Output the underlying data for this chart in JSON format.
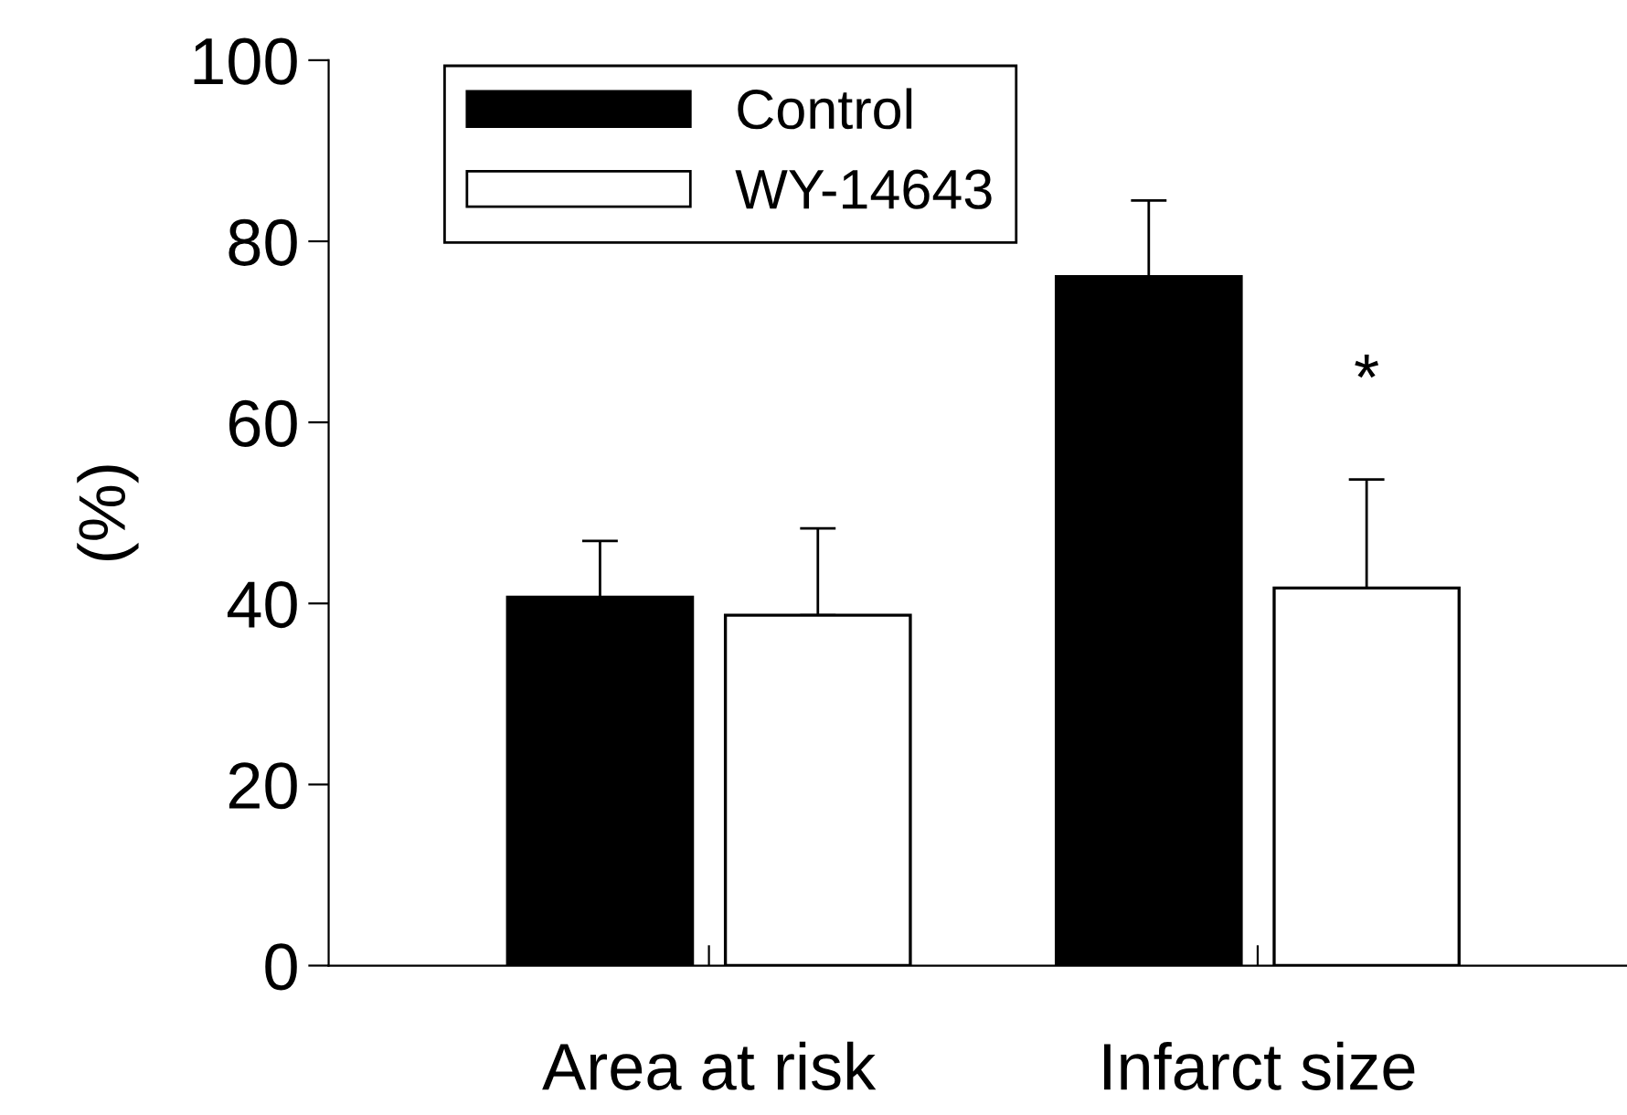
{
  "chart_data": {
    "type": "bar",
    "ylabel": "(%)",
    "categories": [
      "Area at risk",
      "Infarct size"
    ],
    "series": [
      {
        "name": "Control",
        "color": "#000000",
        "values": [
          40.7,
          76.1
        ],
        "errors": [
          6.2,
          8.4
        ]
      },
      {
        "name": "WY-14643",
        "color": "#ffffff",
        "values": [
          38.7,
          41.7
        ],
        "errors": [
          9.6,
          12.0
        ]
      }
    ],
    "ylim": [
      0,
      100
    ],
    "yticks": [
      0,
      20,
      40,
      60,
      80,
      100
    ],
    "grid": false,
    "legend": "top left",
    "annotations": [
      "*"
    ]
  }
}
